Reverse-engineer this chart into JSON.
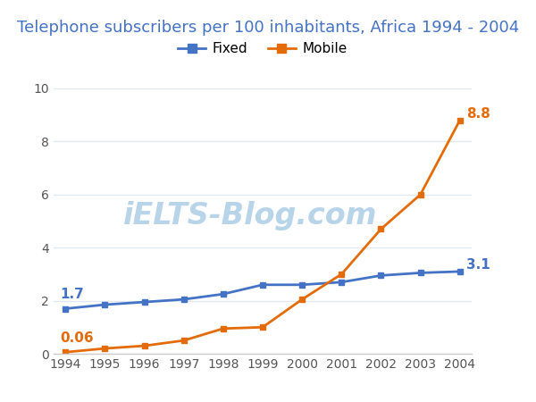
{
  "title": "Telephone subscribers per 100 inhabitants, Africa 1994 - 2004",
  "years": [
    1994,
    1995,
    1996,
    1997,
    1998,
    1999,
    2000,
    2001,
    2002,
    2003,
    2004
  ],
  "fixed": [
    1.7,
    1.85,
    1.95,
    2.05,
    2.25,
    2.6,
    2.6,
    2.7,
    2.95,
    3.05,
    3.1
  ],
  "mobile": [
    0.06,
    0.2,
    0.3,
    0.5,
    0.95,
    1.0,
    2.05,
    3.0,
    4.7,
    6.0,
    8.8
  ],
  "fixed_color": "#4472C4",
  "mobile_color": "#E36C09",
  "fixed_label": "Fixed",
  "mobile_label": "Mobile",
  "fixed_start_annotation": "1.7",
  "fixed_end_annotation": "3.1",
  "mobile_start_annotation": "0.06",
  "mobile_end_annotation": "8.8",
  "ylim": [
    0,
    10
  ],
  "yticks": [
    0,
    2,
    4,
    6,
    8,
    10
  ],
  "background_color": "#ffffff",
  "watermark_text": "iELTS-Blog.com",
  "watermark_color": "#b8d4e8",
  "grid_color": "#e0e8f0",
  "title_color": "#4472C4",
  "title_fontsize": 13,
  "legend_fontsize": 11,
  "annotation_fontsize": 11,
  "tick_color": "#555555"
}
